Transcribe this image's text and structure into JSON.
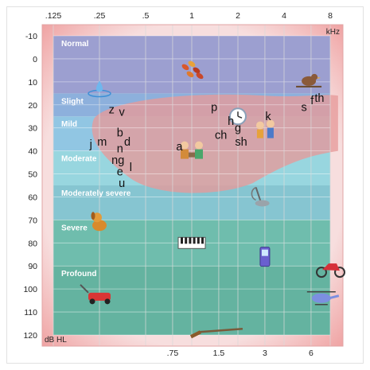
{
  "chart_data": {
    "type": "audiogram",
    "x_top_ticks": [
      ".125",
      ".25",
      ".5",
      "1",
      "2",
      "4",
      "8"
    ],
    "x_bottom_ticks": [
      ".75",
      "1.5",
      "3",
      "6"
    ],
    "x_unit": "kHz",
    "y_unit": "dB HL",
    "y_ticks": [
      "-10",
      "0",
      "10",
      "20",
      "30",
      "40",
      "50",
      "60",
      "70",
      "80",
      "90",
      "100",
      "110",
      "120"
    ],
    "ylim": [
      -10,
      120
    ],
    "y_reversed": true,
    "grid": true,
    "bands": [
      {
        "name": "Normal",
        "from": -10,
        "to": 15,
        "color": "#9c9fd0"
      },
      {
        "name": "Slight",
        "from": 15,
        "to": 25,
        "color": "#8db0dc"
      },
      {
        "name": "Mild",
        "from": 25,
        "to": 40,
        "color": "#91c6e3"
      },
      {
        "name": "Moderate",
        "from": 40,
        "to": 55,
        "color": "#98d6df"
      },
      {
        "name": "Moderately severe",
        "from": 55,
        "to": 70,
        "color": "#86c5d1"
      },
      {
        "name": "Severe",
        "from": 70,
        "to": 90,
        "color": "#6fbdad"
      },
      {
        "name": "Profound",
        "from": 90,
        "to": 120,
        "color": "#64b3a0"
      }
    ],
    "speech_banana_color": "#e79a9a",
    "phonemes": [
      {
        "label": "z",
        "freq": 0.3,
        "db": 22
      },
      {
        "label": "v",
        "freq": 0.35,
        "db": 23
      },
      {
        "label": "j",
        "freq": 0.22,
        "db": 37
      },
      {
        "label": "m",
        "freq": 0.26,
        "db": 36
      },
      {
        "label": "b",
        "freq": 0.34,
        "db": 32
      },
      {
        "label": "d",
        "freq": 0.38,
        "db": 36
      },
      {
        "label": "n",
        "freq": 0.34,
        "db": 39
      },
      {
        "label": "ng",
        "freq": 0.33,
        "db": 44
      },
      {
        "label": "e",
        "freq": 0.34,
        "db": 49
      },
      {
        "label": "l",
        "freq": 0.4,
        "db": 47
      },
      {
        "label": "u",
        "freq": 0.35,
        "db": 54
      },
      {
        "label": "a",
        "freq": 0.83,
        "db": 38
      },
      {
        "label": "p",
        "freq": 1.4,
        "db": 21
      },
      {
        "label": "h",
        "freq": 1.8,
        "db": 27
      },
      {
        "label": "ch",
        "freq": 1.55,
        "db": 33
      },
      {
        "label": "g",
        "freq": 2.0,
        "db": 30
      },
      {
        "label": "sh",
        "freq": 2.1,
        "db": 36
      },
      {
        "label": "k",
        "freq": 3.15,
        "db": 25
      },
      {
        "label": "s",
        "freq": 5.4,
        "db": 21
      },
      {
        "label": "f",
        "freq": 6.1,
        "db": 18
      },
      {
        "label": "th",
        "freq": 6.8,
        "db": 17
      }
    ],
    "sound_icons": [
      {
        "name": "leaves-rustling-icon",
        "freq": 1.0,
        "db": 5
      },
      {
        "name": "dripping-faucet-icon",
        "freq": 0.25,
        "db": 13
      },
      {
        "name": "bird-chirping-icon",
        "freq": 5.8,
        "db": 10
      },
      {
        "name": "clock-ticking-icon",
        "freq": 2.0,
        "db": 25
      },
      {
        "name": "children-talking-icon",
        "freq": 3.0,
        "db": 31
      },
      {
        "name": "people-talking-icon",
        "freq": 1.0,
        "db": 40
      },
      {
        "name": "vacuum-cleaner-icon",
        "freq": 2.75,
        "db": 60
      },
      {
        "name": "dog-barking-icon",
        "freq": 0.25,
        "db": 71
      },
      {
        "name": "piano-icon",
        "freq": 1.0,
        "db": 80
      },
      {
        "name": "cell-phone-icon",
        "freq": 3.0,
        "db": 86
      },
      {
        "name": "motorcycle-icon",
        "freq": 8.0,
        "db": 91
      },
      {
        "name": "lawn-mower-icon",
        "freq": 0.25,
        "db": 103
      },
      {
        "name": "helicopter-icon",
        "freq": 7.0,
        "db": 104
      },
      {
        "name": "shotgun-icon",
        "freq": 1.5,
        "db": 118
      }
    ]
  }
}
